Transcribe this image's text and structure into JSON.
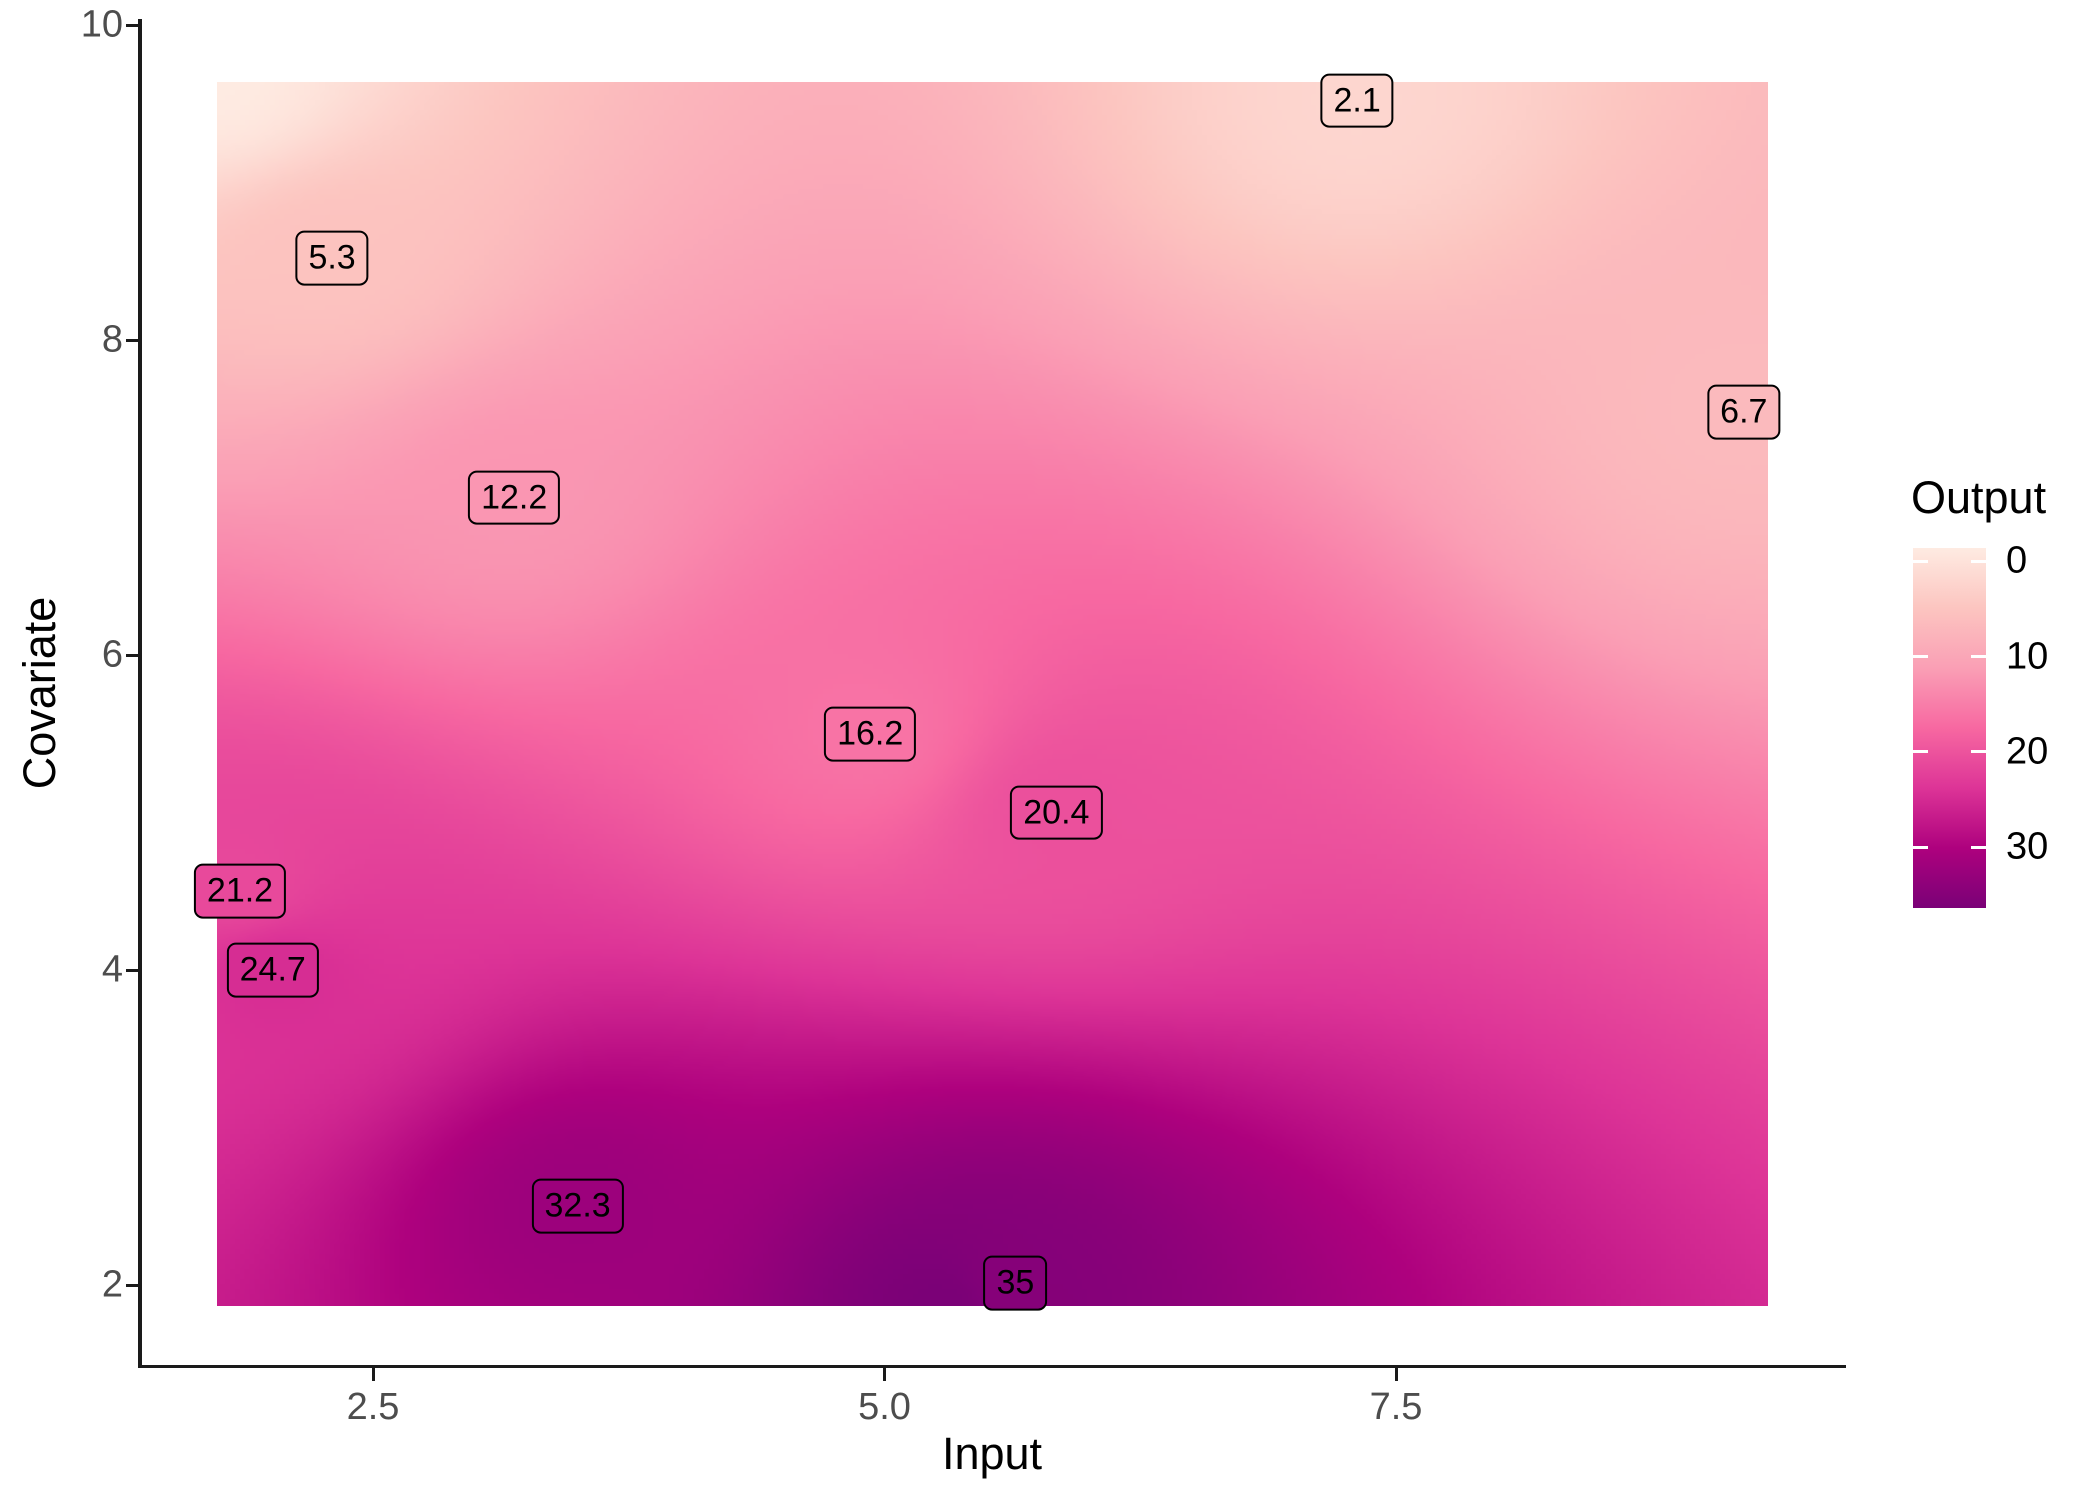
{
  "chart_data": {
    "type": "heatmap",
    "title": "",
    "xlabel": "Input",
    "ylabel": "Covariate",
    "grid": false,
    "x_ticks": {
      "values": [
        2.5,
        5.0,
        7.5
      ],
      "labels": [
        "2.5",
        "5.0",
        "7.5"
      ]
    },
    "y_ticks": {
      "values": [
        10,
        8,
        6,
        4,
        2
      ],
      "labels": [
        "10",
        "8",
        "6",
        "4",
        "2"
      ]
    },
    "x_extent": [
      1.74,
      9.32
    ],
    "y_extent": [
      1.87,
      9.64
    ],
    "fill_scale": {
      "palette": "RdPu",
      "limits": [
        -1.4,
        36.4
      ],
      "colors": [
        "#feebe2",
        "#fcc5c0",
        "#fa9fb5",
        "#f768a1",
        "#dd3497",
        "#ae017e",
        "#7a0177"
      ]
    },
    "legend": {
      "title": "Output",
      "position": "right",
      "ticks": {
        "values": [
          0,
          10,
          20,
          30
        ],
        "labels": [
          "0",
          "10",
          "20",
          "30"
        ]
      }
    },
    "points": [
      {
        "x": 7.31,
        "y": 9.52,
        "value": 2.1,
        "label": "2.1"
      },
      {
        "x": 2.3,
        "y": 8.52,
        "value": 5.3,
        "label": "5.3"
      },
      {
        "x": 9.2,
        "y": 7.54,
        "value": 6.7,
        "label": "6.7"
      },
      {
        "x": 3.19,
        "y": 7.0,
        "value": 12.2,
        "label": "12.2"
      },
      {
        "x": 4.93,
        "y": 5.5,
        "value": 16.2,
        "label": "16.2"
      },
      {
        "x": 5.84,
        "y": 5.0,
        "value": 20.4,
        "label": "20.4"
      },
      {
        "x": 1.85,
        "y": 4.5,
        "value": 21.2,
        "label": "21.2"
      },
      {
        "x": 2.01,
        "y": 4.0,
        "value": 24.7,
        "label": "24.7"
      },
      {
        "x": 3.5,
        "y": 2.5,
        "value": 32.3,
        "label": "32.3"
      },
      {
        "x": 5.64,
        "y": 2.01,
        "value": 35,
        "label": "35"
      }
    ],
    "colors": {
      "background": "#ffffff",
      "axis_line": "#1a1a1a",
      "tick_label": "#4d4d4d",
      "axis_title": "#000000",
      "label_text": "#000000",
      "label_border": "#000000",
      "legend_tick": "#ffffff"
    }
  }
}
